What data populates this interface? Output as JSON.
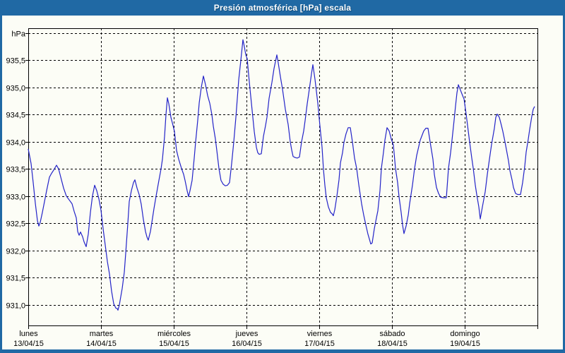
{
  "window": {
    "title": "Presión atmosférica [hPa] escala"
  },
  "colors": {
    "titlebar": "#2069a4",
    "window_border": "#2069a4",
    "background": "#fcfdf6",
    "line": "#2323c8",
    "grid": "#000000",
    "text": "#000000"
  },
  "chart_data": {
    "type": "line",
    "title": "Presión atmosférica [hPa] escala",
    "ylabel": "hPa",
    "xlabel": "",
    "grid": "dashed",
    "legend": "none",
    "ylim": [
      930.62,
      936.09
    ],
    "xlim_days": [
      0,
      7
    ],
    "y_ticks": [
      {
        "value": 936.0,
        "label": "hPa"
      },
      {
        "value": 935.5,
        "label": "935,5"
      },
      {
        "value": 935.0,
        "label": "935,0"
      },
      {
        "value": 934.5,
        "label": "934,5"
      },
      {
        "value": 934.0,
        "label": "934,0"
      },
      {
        "value": 933.5,
        "label": "933,5"
      },
      {
        "value": 933.0,
        "label": "933,0"
      },
      {
        "value": 932.5,
        "label": "932,5"
      },
      {
        "value": 932.0,
        "label": "932,0"
      },
      {
        "value": 931.5,
        "label": "931,5"
      },
      {
        "value": 931.0,
        "label": "931,0"
      }
    ],
    "x_days": [
      {
        "name": "lunes",
        "date": "13/04/15"
      },
      {
        "name": "martes",
        "date": "14/04/15"
      },
      {
        "name": "miércoles",
        "date": "15/04/15"
      },
      {
        "name": "jueves",
        "date": "16/04/15"
      },
      {
        "name": "viernes",
        "date": "17/04/15"
      },
      {
        "name": "sábado",
        "date": "18/04/15"
      },
      {
        "name": "domingo",
        "date": "19/04/15"
      }
    ],
    "series": [
      {
        "name": "Presión atmosférica [hPa]",
        "color": "#2323c8",
        "points": [
          [
            0.0,
            933.87
          ],
          [
            0.039,
            933.6
          ],
          [
            0.068,
            933.25
          ],
          [
            0.097,
            932.87
          ],
          [
            0.126,
            932.55
          ],
          [
            0.146,
            932.45
          ],
          [
            0.165,
            932.52
          ],
          [
            0.194,
            932.7
          ],
          [
            0.223,
            932.9
          ],
          [
            0.252,
            933.1
          ],
          [
            0.291,
            933.35
          ],
          [
            0.32,
            933.42
          ],
          [
            0.35,
            933.48
          ],
          [
            0.388,
            933.57
          ],
          [
            0.417,
            933.5
          ],
          [
            0.447,
            933.35
          ],
          [
            0.485,
            933.15
          ],
          [
            0.524,
            933.0
          ],
          [
            0.563,
            932.93
          ],
          [
            0.602,
            932.86
          ],
          [
            0.631,
            932.72
          ],
          [
            0.66,
            932.6
          ],
          [
            0.68,
            932.35
          ],
          [
            0.699,
            932.28
          ],
          [
            0.718,
            932.34
          ],
          [
            0.748,
            932.25
          ],
          [
            0.767,
            932.16
          ],
          [
            0.796,
            932.07
          ],
          [
            0.825,
            932.3
          ],
          [
            0.854,
            932.7
          ],
          [
            0.883,
            933.0
          ],
          [
            0.913,
            933.2
          ],
          [
            0.942,
            933.1
          ],
          [
            0.971,
            932.95
          ],
          [
            1.0,
            932.74
          ],
          [
            1.029,
            932.4
          ],
          [
            1.058,
            932.1
          ],
          [
            1.087,
            931.8
          ],
          [
            1.117,
            931.56
          ],
          [
            1.146,
            931.25
          ],
          [
            1.175,
            931.02
          ],
          [
            1.204,
            930.94
          ],
          [
            1.223,
            930.93
          ],
          [
            1.233,
            930.9
          ],
          [
            1.252,
            931.0
          ],
          [
            1.272,
            931.15
          ],
          [
            1.291,
            931.3
          ],
          [
            1.32,
            931.6
          ],
          [
            1.34,
            931.95
          ],
          [
            1.369,
            932.5
          ],
          [
            1.388,
            932.9
          ],
          [
            1.417,
            933.1
          ],
          [
            1.447,
            933.25
          ],
          [
            1.466,
            933.3
          ],
          [
            1.495,
            933.15
          ],
          [
            1.524,
            933.03
          ],
          [
            1.553,
            932.85
          ],
          [
            1.583,
            932.57
          ],
          [
            1.612,
            932.35
          ],
          [
            1.631,
            932.25
          ],
          [
            1.65,
            932.19
          ],
          [
            1.68,
            932.35
          ],
          [
            1.709,
            932.6
          ],
          [
            1.728,
            932.77
          ],
          [
            1.757,
            933.0
          ],
          [
            1.796,
            933.29
          ],
          [
            1.825,
            933.5
          ],
          [
            1.845,
            933.68
          ],
          [
            1.874,
            934.1
          ],
          [
            1.893,
            934.5
          ],
          [
            1.913,
            934.81
          ],
          [
            1.932,
            934.7
          ],
          [
            1.961,
            934.45
          ],
          [
            1.99,
            934.3
          ],
          [
            2.01,
            934.19
          ],
          [
            2.039,
            933.84
          ],
          [
            2.068,
            933.68
          ],
          [
            2.107,
            933.51
          ],
          [
            2.136,
            933.4
          ],
          [
            2.155,
            933.29
          ],
          [
            2.184,
            933.1
          ],
          [
            2.204,
            932.99
          ],
          [
            2.223,
            933.1
          ],
          [
            2.252,
            933.29
          ],
          [
            2.282,
            933.7
          ],
          [
            2.301,
            934.0
          ],
          [
            2.33,
            934.4
          ],
          [
            2.35,
            934.72
          ],
          [
            2.379,
            935.0
          ],
          [
            2.408,
            935.21
          ],
          [
            2.437,
            935.05
          ],
          [
            2.466,
            934.85
          ],
          [
            2.495,
            934.71
          ],
          [
            2.524,
            934.5
          ],
          [
            2.544,
            934.29
          ],
          [
            2.573,
            934.05
          ],
          [
            2.592,
            933.84
          ],
          [
            2.621,
            933.51
          ],
          [
            2.65,
            933.29
          ],
          [
            2.68,
            933.22
          ],
          [
            2.709,
            933.19
          ],
          [
            2.738,
            933.2
          ],
          [
            2.767,
            933.25
          ],
          [
            2.796,
            933.6
          ],
          [
            2.825,
            934.0
          ],
          [
            2.854,
            934.45
          ],
          [
            2.893,
            935.14
          ],
          [
            2.922,
            935.5
          ],
          [
            2.951,
            935.88
          ],
          [
            2.971,
            935.75
          ],
          [
            2.99,
            935.6
          ],
          [
            3.01,
            935.53
          ],
          [
            3.039,
            935.1
          ],
          [
            3.058,
            934.84
          ],
          [
            3.087,
            934.45
          ],
          [
            3.107,
            934.19
          ],
          [
            3.136,
            933.9
          ],
          [
            3.155,
            933.8
          ],
          [
            3.175,
            933.77
          ],
          [
            3.204,
            933.78
          ],
          [
            3.233,
            934.1
          ],
          [
            3.262,
            934.3
          ],
          [
            3.282,
            934.45
          ],
          [
            3.311,
            934.8
          ],
          [
            3.35,
            935.1
          ],
          [
            3.379,
            935.35
          ],
          [
            3.417,
            935.6
          ],
          [
            3.437,
            935.45
          ],
          [
            3.466,
            935.2
          ],
          [
            3.495,
            934.97
          ],
          [
            3.534,
            934.6
          ],
          [
            3.573,
            934.32
          ],
          [
            3.602,
            934.0
          ],
          [
            3.621,
            933.85
          ],
          [
            3.641,
            933.73
          ],
          [
            3.67,
            933.71
          ],
          [
            3.699,
            933.7
          ],
          [
            3.728,
            933.72
          ],
          [
            3.757,
            934.0
          ],
          [
            3.786,
            934.2
          ],
          [
            3.806,
            934.39
          ],
          [
            3.835,
            934.7
          ],
          [
            3.864,
            934.97
          ],
          [
            3.893,
            935.25
          ],
          [
            3.913,
            935.42
          ],
          [
            3.942,
            935.15
          ],
          [
            3.981,
            934.71
          ],
          [
            4.01,
            934.29
          ],
          [
            4.039,
            933.9
          ],
          [
            4.058,
            933.49
          ],
          [
            4.078,
            933.2
          ],
          [
            4.097,
            932.97
          ],
          [
            4.126,
            932.8
          ],
          [
            4.155,
            932.7
          ],
          [
            4.175,
            932.68
          ],
          [
            4.194,
            932.64
          ],
          [
            4.214,
            932.75
          ],
          [
            4.243,
            933.0
          ],
          [
            4.272,
            933.3
          ],
          [
            4.291,
            933.61
          ],
          [
            4.32,
            933.8
          ],
          [
            4.34,
            933.99
          ],
          [
            4.369,
            934.15
          ],
          [
            4.398,
            934.26
          ],
          [
            4.427,
            934.26
          ],
          [
            4.456,
            934.0
          ],
          [
            4.485,
            933.7
          ],
          [
            4.515,
            933.51
          ],
          [
            4.544,
            933.21
          ],
          [
            4.583,
            932.86
          ],
          [
            4.612,
            932.65
          ],
          [
            4.641,
            932.47
          ],
          [
            4.67,
            932.3
          ],
          [
            4.709,
            932.12
          ],
          [
            4.728,
            932.14
          ],
          [
            4.757,
            932.4
          ],
          [
            4.786,
            932.6
          ],
          [
            4.806,
            932.73
          ],
          [
            4.835,
            933.1
          ],
          [
            4.854,
            933.51
          ],
          [
            4.883,
            933.8
          ],
          [
            4.903,
            934.03
          ],
          [
            4.932,
            934.26
          ],
          [
            4.961,
            934.2
          ],
          [
            4.99,
            934.05
          ],
          [
            5.019,
            933.94
          ],
          [
            5.049,
            933.51
          ],
          [
            5.078,
            933.25
          ],
          [
            5.097,
            932.99
          ],
          [
            5.126,
            932.7
          ],
          [
            5.146,
            932.47
          ],
          [
            5.165,
            932.31
          ],
          [
            5.194,
            932.45
          ],
          [
            5.223,
            932.65
          ],
          [
            5.243,
            932.86
          ],
          [
            5.282,
            933.2
          ],
          [
            5.311,
            933.51
          ],
          [
            5.34,
            933.75
          ],
          [
            5.388,
            934.03
          ],
          [
            5.437,
            934.2
          ],
          [
            5.466,
            934.25
          ],
          [
            5.495,
            934.25
          ],
          [
            5.524,
            934.0
          ],
          [
            5.563,
            933.68
          ],
          [
            5.583,
            933.4
          ],
          [
            5.612,
            933.16
          ],
          [
            5.641,
            933.05
          ],
          [
            5.67,
            932.98
          ],
          [
            5.709,
            932.97
          ],
          [
            5.748,
            932.97
          ],
          [
            5.777,
            933.51
          ],
          [
            5.806,
            933.8
          ],
          [
            5.825,
            934.03
          ],
          [
            5.854,
            934.4
          ],
          [
            5.874,
            934.66
          ],
          [
            5.893,
            934.9
          ],
          [
            5.913,
            935.05
          ],
          [
            5.942,
            934.95
          ],
          [
            5.971,
            934.85
          ],
          [
            5.99,
            934.79
          ],
          [
            6.019,
            934.51
          ],
          [
            6.049,
            934.2
          ],
          [
            6.068,
            933.99
          ],
          [
            6.097,
            933.7
          ],
          [
            6.117,
            933.51
          ],
          [
            6.146,
            933.2
          ],
          [
            6.165,
            933.03
          ],
          [
            6.194,
            932.8
          ],
          [
            6.214,
            932.58
          ],
          [
            6.243,
            932.8
          ],
          [
            6.282,
            933.08
          ],
          [
            6.311,
            933.4
          ],
          [
            6.34,
            933.68
          ],
          [
            6.369,
            933.95
          ],
          [
            6.408,
            934.25
          ],
          [
            6.427,
            934.45
          ],
          [
            6.447,
            934.51
          ],
          [
            6.476,
            934.45
          ],
          [
            6.505,
            934.3
          ],
          [
            6.524,
            934.19
          ],
          [
            6.553,
            934.0
          ],
          [
            6.573,
            933.86
          ],
          [
            6.602,
            933.65
          ],
          [
            6.621,
            933.47
          ],
          [
            6.65,
            933.3
          ],
          [
            6.67,
            933.16
          ],
          [
            6.699,
            933.05
          ],
          [
            6.728,
            933.03
          ],
          [
            6.767,
            933.03
          ],
          [
            6.796,
            933.25
          ],
          [
            6.825,
            933.55
          ],
          [
            6.845,
            933.81
          ],
          [
            6.874,
            934.05
          ],
          [
            6.893,
            934.23
          ],
          [
            6.922,
            934.47
          ],
          [
            6.942,
            934.6
          ],
          [
            6.961,
            934.65
          ]
        ]
      }
    ]
  }
}
